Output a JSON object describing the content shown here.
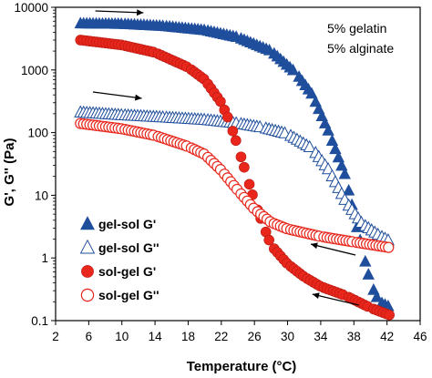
{
  "chart_data": {
    "type": "scatter",
    "xlabel": "Temperature",
    "xlabel_unit": "(°C)",
    "ylabel": "G', G'' (Pa)",
    "yscale": "log",
    "xlim": [
      2,
      46
    ],
    "ylim": [
      0.1,
      10000
    ],
    "xticks": [
      "2",
      "6",
      "10",
      "14",
      "18",
      "22",
      "26",
      "30",
      "34",
      "38",
      "42",
      "46"
    ],
    "yticks": [
      "0.1",
      "1",
      "10",
      "100",
      "1000",
      "10000"
    ],
    "annotations": [
      "5% gelatin",
      "5% alginate"
    ],
    "legend_placement": "lower-left",
    "series": [
      {
        "name": "gel-sol  G'",
        "marker": "filled-triangle",
        "color": "#1f4e9c",
        "arrow": "heating (right)",
        "points": [
          [
            5,
            5500
          ],
          [
            10,
            5400
          ],
          [
            15,
            5000
          ],
          [
            20,
            4300
          ],
          [
            24,
            3300
          ],
          [
            28,
            2000
          ],
          [
            31,
            900
          ],
          [
            33,
            400
          ],
          [
            35,
            100
          ],
          [
            37,
            20
          ],
          [
            38,
            5
          ],
          [
            39,
            1.4
          ],
          [
            40,
            0.4
          ],
          [
            41,
            0.2
          ],
          [
            42.5,
            0.16
          ]
        ]
      },
      {
        "name": "gel-sol  G''",
        "marker": "open-triangle",
        "color": "#1f4e9c",
        "arrow": "heating (right)",
        "points": [
          [
            5,
            210
          ],
          [
            10,
            190
          ],
          [
            15,
            175
          ],
          [
            20,
            160
          ],
          [
            24,
            140
          ],
          [
            27,
            120
          ],
          [
            30,
            95
          ],
          [
            33,
            55
          ],
          [
            35,
            25
          ],
          [
            37,
            8
          ],
          [
            39,
            3.5
          ],
          [
            41,
            2.3
          ],
          [
            42.5,
            1.8
          ]
        ]
      },
      {
        "name": "sol-gel  G'",
        "marker": "filled-circle",
        "color": "#e8261c",
        "arrow": "cooling (left)",
        "points": [
          [
            5,
            3000
          ],
          [
            10,
            2500
          ],
          [
            14,
            1900
          ],
          [
            18,
            1100
          ],
          [
            20,
            700
          ],
          [
            22,
            300
          ],
          [
            23,
            150
          ],
          [
            24,
            60
          ],
          [
            25,
            22
          ],
          [
            26,
            8
          ],
          [
            27,
            3.5
          ],
          [
            28,
            1.6
          ],
          [
            30,
            0.8
          ],
          [
            32,
            0.5
          ],
          [
            34,
            0.35
          ],
          [
            37,
            0.25
          ],
          [
            40,
            0.16
          ],
          [
            42.5,
            0.12
          ]
        ]
      },
      {
        "name": "sol-gel  G''",
        "marker": "open-circle",
        "color": "#e8261c",
        "arrow": "cooling (left)",
        "points": [
          [
            5,
            140
          ],
          [
            10,
            115
          ],
          [
            14,
            90
          ],
          [
            18,
            60
          ],
          [
            20,
            45
          ],
          [
            22,
            25
          ],
          [
            24,
            12
          ],
          [
            26,
            6
          ],
          [
            28,
            3.7
          ],
          [
            30,
            2.9
          ],
          [
            34,
            2.2
          ],
          [
            38,
            1.8
          ],
          [
            42.5,
            1.45
          ]
        ]
      }
    ]
  }
}
